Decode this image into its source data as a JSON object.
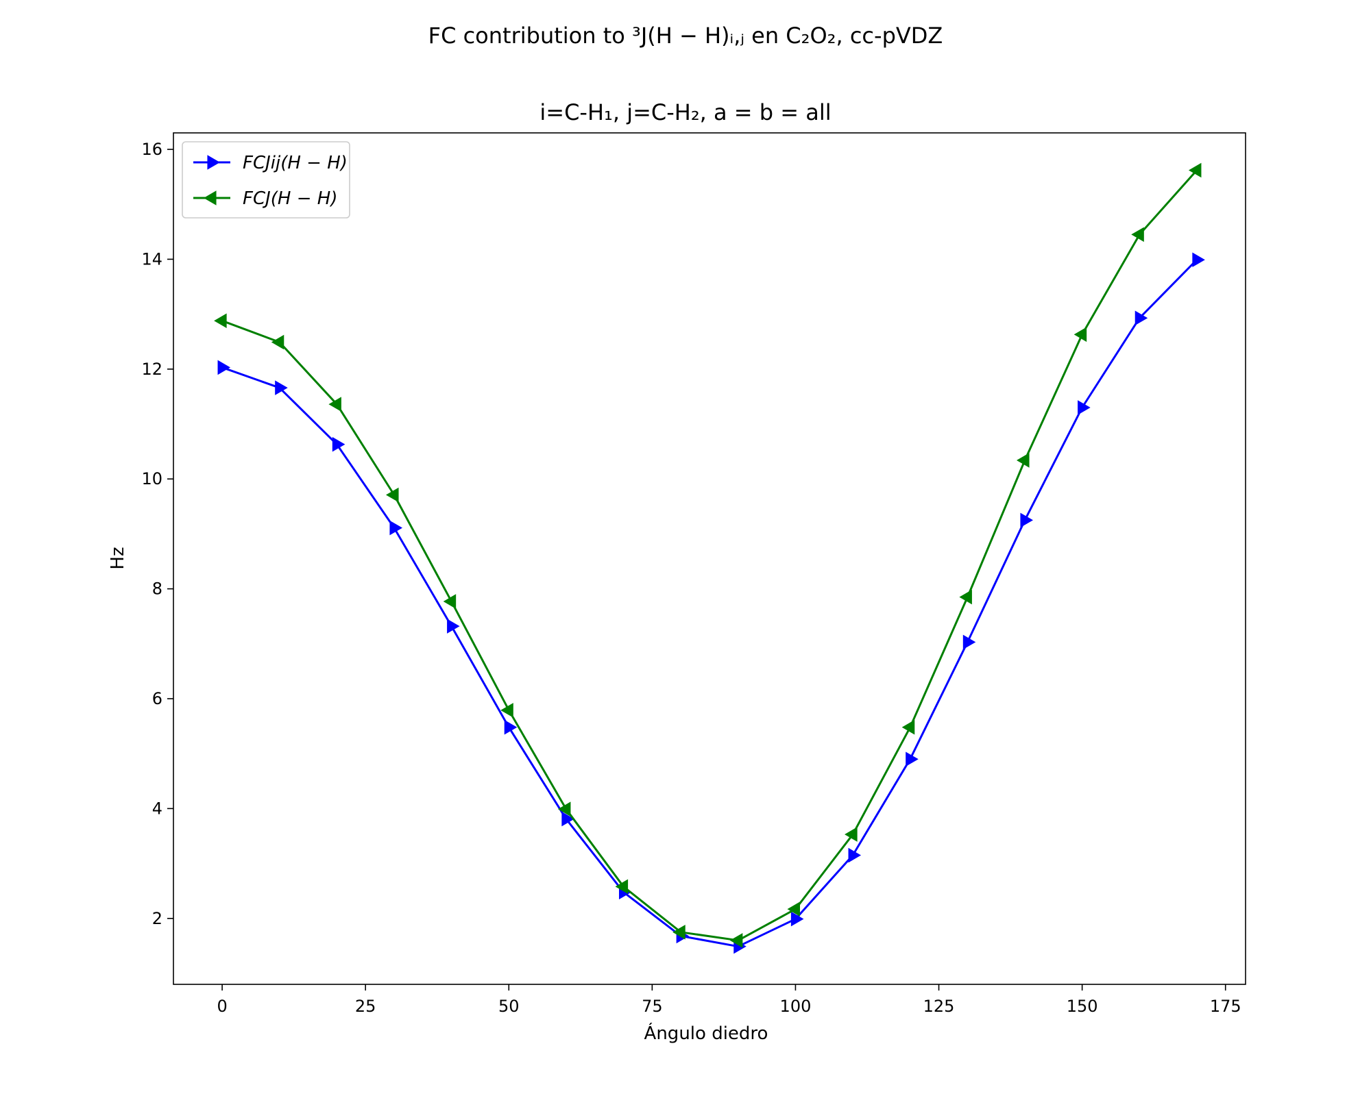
{
  "chart_data": {
    "type": "line",
    "title": "FC contribution to ³J(H − H)ᵢ,ⱼ en C₂O₂, cc-pVDZ",
    "subtitle": "i=C-H₁, j=C-H₂, a = b = all",
    "xlabel": "Ángulo diedro",
    "ylabel": "Hz",
    "xlim": [
      -8.5,
      178.5
    ],
    "ylim": [
      0.8,
      16.3
    ],
    "xticks": [
      0,
      25,
      50,
      75,
      100,
      125,
      150,
      175
    ],
    "yticks": [
      2,
      4,
      6,
      8,
      10,
      12,
      14,
      16
    ],
    "grid": false,
    "legend_position": "upper-left",
    "x": [
      0,
      10,
      20,
      30,
      40,
      50,
      60,
      70,
      80,
      90,
      100,
      110,
      120,
      130,
      140,
      150,
      160,
      170
    ],
    "series": [
      {
        "name": "FCJij(H − H)",
        "color": "#0000ff",
        "marker": "triangle-right",
        "values": [
          12.03,
          11.66,
          10.63,
          9.11,
          7.32,
          5.48,
          3.81,
          2.48,
          1.68,
          1.49,
          1.99,
          3.15,
          4.9,
          7.03,
          9.25,
          11.3,
          12.93,
          13.99
        ]
      },
      {
        "name": "FCJ(H − H)",
        "color": "#008000",
        "marker": "triangle-left",
        "values": [
          12.88,
          12.49,
          11.36,
          9.71,
          7.77,
          5.79,
          3.99,
          2.58,
          1.75,
          1.6,
          2.17,
          3.53,
          5.48,
          7.85,
          10.34,
          12.63,
          14.45,
          15.62
        ]
      }
    ]
  }
}
